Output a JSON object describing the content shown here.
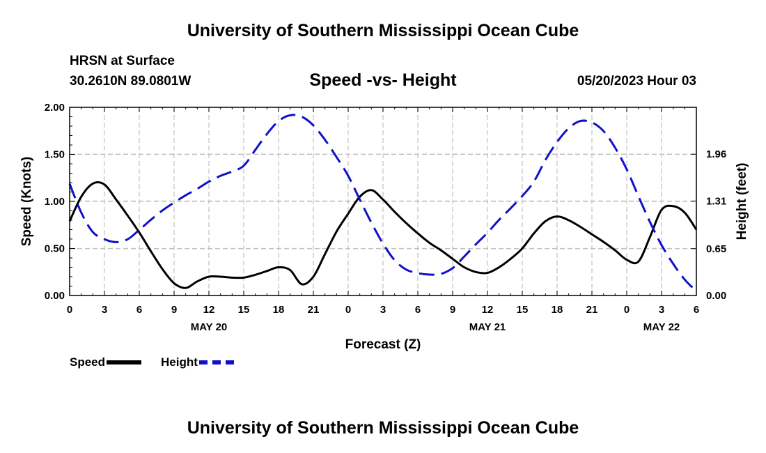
{
  "page": {
    "title": "University of Southern Mississippi Ocean Cube",
    "footer_title": "University of Southern Mississippi Ocean Cube",
    "station": "HRSN at Surface",
    "coords": "30.2610N  89.0801W",
    "subtitle": "Speed -vs- Height",
    "datetime": "05/20/2023 Hour 03"
  },
  "chart_data": {
    "type": "line",
    "title": "Speed -vs- Height",
    "xlabel": "Forecast (Z)",
    "ylabel": "Speed (Knots)",
    "y2label": "Height (feet)",
    "x_range_hours": [
      0,
      54
    ],
    "x_tick_labels": [
      "0",
      "3",
      "6",
      "9",
      "12",
      "15",
      "18",
      "21",
      "0",
      "3",
      "6",
      "9",
      "12",
      "15",
      "18",
      "21",
      "0",
      "3",
      "6"
    ],
    "day_labels": [
      {
        "hour": 12,
        "label": "MAY 20"
      },
      {
        "hour": 36,
        "label": "MAY 21"
      },
      {
        "hour": 51,
        "label": "MAY 22"
      }
    ],
    "ylim": [
      0,
      2
    ],
    "y_ticks": [
      "0.00",
      "0.50",
      "1.00",
      "1.50",
      "2.00"
    ],
    "y2lim": [
      0,
      2.61
    ],
    "y2_ticks": [
      0,
      0.65,
      1.31,
      1.96
    ],
    "y2_tick_labels": [
      "0.00",
      "0.65",
      "1.31",
      "1.96"
    ],
    "grid": true,
    "legend_position": "bottom-left",
    "series": [
      {
        "name": "Speed",
        "axis": "left",
        "color": "#000000",
        "dash": "solid",
        "x": [
          0,
          1,
          2,
          3,
          4,
          5,
          6,
          7,
          8,
          9,
          10,
          11,
          12,
          13,
          14,
          15,
          16,
          17,
          18,
          19,
          20,
          21,
          22,
          23,
          24,
          25,
          26,
          27,
          28,
          29,
          30,
          31,
          32,
          33,
          34,
          35,
          36,
          37,
          38,
          39,
          40,
          41,
          42,
          43,
          44,
          45,
          46,
          47,
          48,
          49,
          50,
          51,
          52,
          53,
          54
        ],
        "values": [
          0.79,
          1.05,
          1.19,
          1.18,
          1.02,
          0.85,
          0.67,
          0.47,
          0.28,
          0.13,
          0.08,
          0.15,
          0.2,
          0.2,
          0.19,
          0.19,
          0.22,
          0.26,
          0.3,
          0.27,
          0.12,
          0.2,
          0.44,
          0.68,
          0.87,
          1.05,
          1.12,
          1.02,
          0.89,
          0.77,
          0.66,
          0.56,
          0.48,
          0.39,
          0.3,
          0.25,
          0.24,
          0.3,
          0.39,
          0.5,
          0.66,
          0.79,
          0.84,
          0.8,
          0.73,
          0.65,
          0.57,
          0.48,
          0.38,
          0.36,
          0.62,
          0.91,
          0.95,
          0.88,
          0.7
        ]
      },
      {
        "name": "Height",
        "axis": "right",
        "color": "#1010c8",
        "dash": "dashed",
        "x": [
          0,
          1,
          2,
          3,
          4,
          5,
          6,
          7,
          8,
          9,
          10,
          11,
          12,
          13,
          14,
          15,
          16,
          17,
          18,
          19,
          20,
          21,
          22,
          23,
          24,
          25,
          26,
          27,
          28,
          29,
          30,
          31,
          32,
          33,
          34,
          35,
          36,
          37,
          38,
          39,
          40,
          41,
          42,
          43,
          44,
          45,
          46,
          47,
          48,
          49,
          50,
          51,
          52,
          53,
          54
        ],
        "values": [
          1.55,
          1.15,
          0.88,
          0.78,
          0.74,
          0.78,
          0.91,
          1.05,
          1.18,
          1.29,
          1.39,
          1.48,
          1.58,
          1.66,
          1.72,
          1.8,
          2.02,
          2.24,
          2.42,
          2.5,
          2.48,
          2.36,
          2.16,
          1.92,
          1.66,
          1.33,
          1.01,
          0.72,
          0.49,
          0.36,
          0.31,
          0.29,
          0.3,
          0.38,
          0.54,
          0.71,
          0.87,
          1.05,
          1.21,
          1.38,
          1.58,
          1.88,
          2.13,
          2.32,
          2.42,
          2.4,
          2.28,
          2.05,
          1.75,
          1.38,
          1.02,
          0.7,
          0.44,
          0.22,
          0.06
        ]
      }
    ]
  },
  "legend": {
    "speed_label": "Speed",
    "height_label": "Height"
  }
}
